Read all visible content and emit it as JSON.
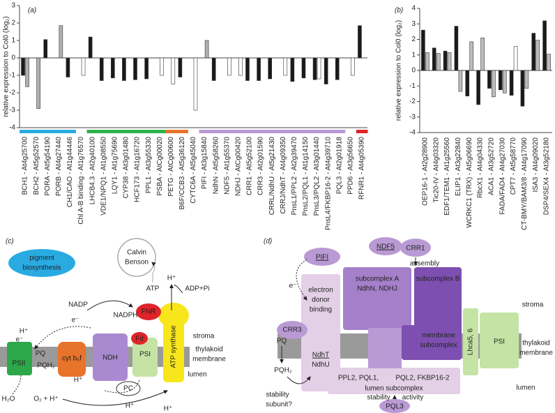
{
  "chart_data": [
    {
      "type": "bar",
      "panel": "(a)",
      "ylabel": "relative expression to Col0 (log₂)",
      "categories": [
        "BCH1 - At4g25700",
        "BCH2 - At5g52570",
        "PORA - At5g54190",
        "PORB - At4g27440",
        "CH1/CAO - At1g44446",
        "Chl A-B binding - At1g76570",
        "LHCB4.3 - At2g40100",
        "VDE1/NPQ1 - At1g08550",
        "LQY1 - At1g75690",
        "CYP38 - At3g01480",
        "HCF173 - At1g16720",
        "PPL1 - At3g55330",
        "PSBA - AtCg00020",
        "PETG - AtCg00600",
        "B6F/CCB3 - At5g36120",
        "CYTC6A - At5g45040",
        "PIFI - At3g15840",
        "NdhN - At5g58260",
        "NDF5 - At1g55370",
        "NDHJ - AtCg00420",
        "CRR1 - At5g52100",
        "CRR3 - At2g01590",
        "CRRL/NdhU - At5g21430",
        "CRRJ/NdhT - At4g09350",
        "PnsL1/PPL2 - At2g39470",
        "PnsL2/PQL1 - At1g14150",
        "PnsL3/PQL2 - At3g01440",
        "PnsL4/FKBP16-2 - At4g39710",
        "PQL3 - At2g01918",
        "PPD6 - At3g56650",
        "RFNR1 - At4g05390"
      ],
      "series": [
        {
          "color": "#1a1a1a",
          "values": [
            -1.0,
            null,
            1.05,
            null,
            -1.1,
            null,
            1.2,
            -1.3,
            -1.15,
            -1.3,
            -1.25,
            -1.2,
            null,
            null,
            -1.1,
            null,
            null,
            -1.3,
            null,
            null,
            -1.3,
            -1.3,
            -1.2,
            null,
            -1.35,
            -1.15,
            -1.25,
            -1.5,
            -1.25,
            null,
            1.85
          ]
        },
        {
          "color": "#b0b0b0",
          "colors": [
            "#b0b0b0",
            "#b0b0b0",
            null,
            "#b0b0b0",
            null,
            "#ffffff",
            null,
            null,
            null,
            null,
            null,
            null,
            "#ffffff",
            "#ffffff",
            null,
            "#ffffff",
            "#b0b0b0",
            null,
            "#ffffff",
            "#ffffff",
            null,
            null,
            null,
            "#ffffff",
            null,
            null,
            "#ffffff",
            null,
            null,
            "#ffffff",
            null
          ],
          "values": [
            -1.65,
            -2.9,
            null,
            1.85,
            null,
            -1.0,
            null,
            null,
            null,
            null,
            null,
            null,
            -1.0,
            -1.5,
            null,
            -3.0,
            1.0,
            null,
            -1.0,
            -1.0,
            null,
            null,
            null,
            -1.0,
            null,
            null,
            -1.2,
            null,
            null,
            -1.0,
            null
          ]
        }
      ],
      "category_colors": [
        "#29abe2",
        "#29abe2",
        "#29abe2",
        "#29abe2",
        "#29abe2",
        null,
        "#2db34a",
        "#2db34a",
        "#2db34a",
        "#2db34a",
        "#2db34a",
        "#2db34a",
        "#2db34a",
        "#e8732a",
        "#e8732a",
        null,
        "#b99ad4",
        "#b99ad4",
        "#b99ad4",
        "#b99ad4",
        "#b99ad4",
        "#b99ad4",
        "#b99ad4",
        "#b99ad4",
        "#b99ad4",
        "#b99ad4",
        "#b99ad4",
        "#b99ad4",
        "#b99ad4",
        null,
        "#e0242a"
      ],
      "ylim": [
        -4,
        3
      ],
      "yticks": [
        -4,
        -3,
        -2,
        -1,
        0,
        1,
        2,
        3
      ]
    },
    {
      "type": "bar",
      "panel": "(b)",
      "ylabel": "relative expression to Col0 (log₂)",
      "categories": [
        "OEP16-1 - At2g28900",
        "Tic20-IV - At4g03320",
        "EDF1/TEM1 - At1g25560",
        "ELIP1 - At3g22840",
        "WCRKC1 (TRX) - At5g06690",
        "RbcX1 - At4g04330",
        "ACA1 - At3g52720",
        "FADA/FAD4 - At4g27030",
        "CPT7 - At5g58770",
        "CT-BMY/BAM3/8 - At4g17090",
        "ISA3 - At4g09020",
        "DSP4/SEX4 - At3g52180"
      ],
      "series": [
        {
          "color": "#1a1a1a",
          "values": [
            2.6,
            1.45,
            1.25,
            2.85,
            -1.65,
            -2.2,
            -1.15,
            -1.25,
            -1.6,
            -2.3,
            2.4,
            3.2
          ]
        },
        {
          "color": "#bdbdbd",
          "colors": [
            "#bdbdbd",
            "#bdbdbd",
            "#bdbdbd",
            "#bdbdbd",
            "#bdbdbd",
            "#bdbdbd",
            "#bdbdbd",
            "#bdbdbd",
            "#ffffff",
            "#bdbdbd",
            "#bdbdbd",
            "#bdbdbd"
          ],
          "values": [
            1.15,
            1.1,
            1.15,
            -1.35,
            1.85,
            2.1,
            -1.7,
            -1.45,
            1.55,
            -1.15,
            1.95,
            1.05
          ]
        }
      ],
      "ylim": [
        -4,
        4
      ],
      "yticks": [
        -4,
        -3,
        -2,
        -1,
        0,
        1,
        2,
        3,
        4
      ]
    }
  ],
  "diagram_c": {
    "labels": [
      "(c)",
      "pigment",
      "biosynthesis",
      "Calvin",
      "Benson",
      "H⁺",
      "ATP",
      "ADP+Pi",
      "NADP",
      "FNR",
      "NADPH",
      "e⁻",
      "stroma",
      "Fd",
      "H⁺",
      "e⁻",
      "thylakoid",
      "membrane",
      "PQ",
      "PSII",
      "PQH₂",
      "cyt b₆f",
      "NDH",
      "PSI",
      "ATP synthase",
      "lumen",
      "H⁺",
      "PC",
      "H₂O",
      "O₂ + H⁺",
      "H⁺",
      "H⁺"
    ]
  },
  "diagram_d": {
    "labels": [
      "(d)",
      "PIFI",
      "NDF5",
      "CRR1",
      "assembly",
      "e⁻",
      "electron",
      "donor",
      "binding",
      "subcomplex A",
      "NdhN, NDHJ",
      "subcomplex B",
      "stroma",
      "PQ",
      "CRR3",
      "NdhT",
      "NdhU",
      "membrane",
      "subcomplex",
      "Lhca5, 6",
      "PSI",
      "thylakoid",
      "membrane",
      "PQH₂",
      "PPL2, PQL1,",
      "PQL2, FKBP16-2",
      "lumen",
      "lumen subcomplex",
      "stability",
      "stability",
      "activity",
      "subunit?",
      "PQL3"
    ]
  }
}
